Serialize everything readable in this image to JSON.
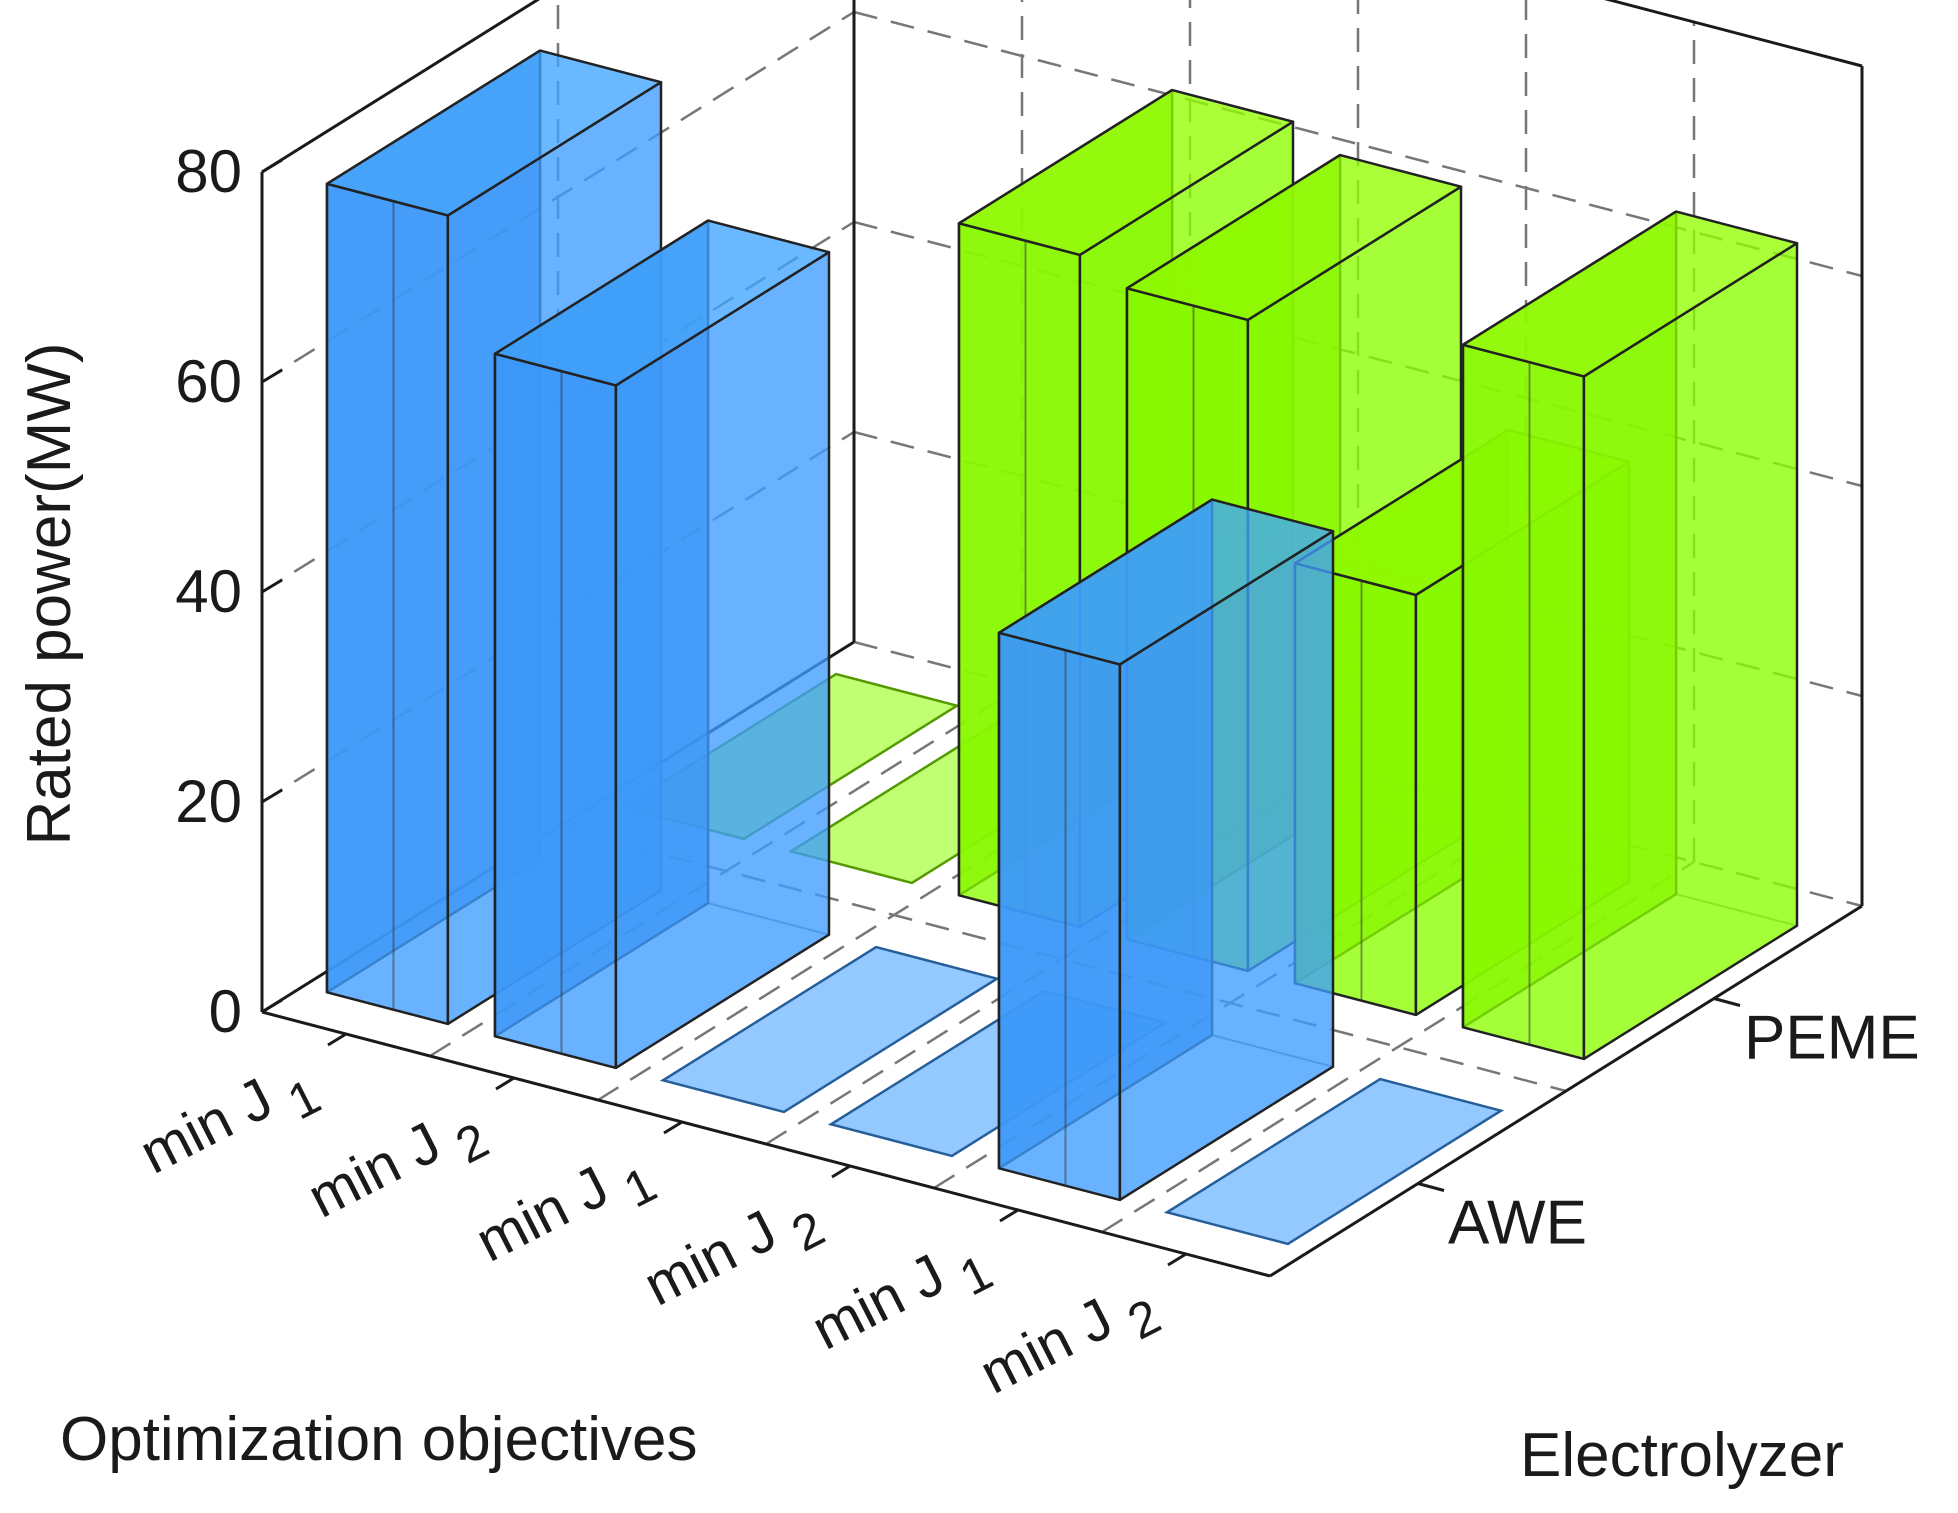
{
  "chart_data": {
    "type": "bar3d",
    "ylabel": "Rated power(MW)",
    "xlabel": "Optimization objectives",
    "zlabel": "Electrolyzer",
    "zlim": [
      0,
      80
    ],
    "zticks": [
      "0",
      "20",
      "40",
      "60",
      "80"
    ],
    "categories": [
      {
        "main": "min J",
        "sub": "1"
      },
      {
        "main": "min J",
        "sub": "2"
      },
      {
        "main": "min J",
        "sub": "1"
      },
      {
        "main": "min J",
        "sub": "2"
      },
      {
        "main": "min J",
        "sub": "1"
      },
      {
        "main": "min J",
        "sub": "2"
      }
    ],
    "series": [
      {
        "name": "AWE",
        "color": "#3d9cff",
        "values": [
          77,
          65,
          0,
          0,
          51,
          0
        ]
      },
      {
        "name": "PEME",
        "color": "#8cff00",
        "values": [
          0,
          0,
          64,
          62,
          40,
          65
        ]
      }
    ],
    "grid": true
  }
}
